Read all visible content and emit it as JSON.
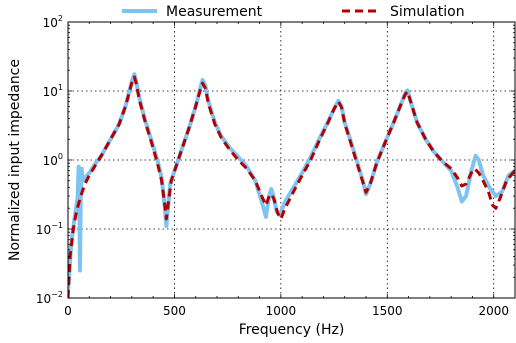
{
  "chart_data": {
    "type": "line",
    "xlabel": "Frequency (Hz)",
    "ylabel": "Normalized input impedance",
    "xlim": [
      0,
      2100
    ],
    "ylim": [
      0.01,
      100
    ],
    "yscale": "log",
    "grid": true,
    "legend_position": "top",
    "x_ticks": [
      0,
      500,
      1000,
      1500,
      2000
    ],
    "x_tick_labels": [
      "0",
      "500",
      "1000",
      "1500",
      "2000"
    ],
    "y_ticks": [
      {
        "value": 0.01,
        "base": "10",
        "exp": "−2"
      },
      {
        "value": 0.1,
        "base": "10",
        "exp": "−1"
      },
      {
        "value": 1,
        "base": "10",
        "exp": "0"
      },
      {
        "value": 10,
        "base": "10",
        "exp": "1"
      },
      {
        "value": 100,
        "base": "10",
        "exp": "2"
      }
    ],
    "series": [
      {
        "name": "Measurement",
        "color": "#7ec4f2",
        "style": "solid",
        "points": [
          [
            0,
            0.012
          ],
          [
            15,
            0.06
          ],
          [
            30,
            0.14
          ],
          [
            45,
            0.28
          ],
          [
            50,
            0.8
          ],
          [
            53,
            0.35
          ],
          [
            56,
            0.025
          ],
          [
            60,
            0.3
          ],
          [
            64,
            0.75
          ],
          [
            70,
            0.5
          ],
          [
            80,
            0.55
          ],
          [
            100,
            0.65
          ],
          [
            130,
            0.9
          ],
          [
            160,
            1.2
          ],
          [
            200,
            2.0
          ],
          [
            240,
            3.3
          ],
          [
            270,
            6.0
          ],
          [
            290,
            10.5
          ],
          [
            305,
            15.5
          ],
          [
            312,
            17.5
          ],
          [
            320,
            14
          ],
          [
            335,
            8.0
          ],
          [
            360,
            4.0
          ],
          [
            390,
            2.0
          ],
          [
            420,
            1.0
          ],
          [
            440,
            0.55
          ],
          [
            455,
            0.2
          ],
          [
            462,
            0.11
          ],
          [
            468,
            0.18
          ],
          [
            480,
            0.45
          ],
          [
            510,
            0.85
          ],
          [
            540,
            1.6
          ],
          [
            570,
            3.0
          ],
          [
            600,
            6.0
          ],
          [
            620,
            10.5
          ],
          [
            632,
            14.5
          ],
          [
            645,
            12
          ],
          [
            660,
            7.0
          ],
          [
            690,
            3.5
          ],
          [
            720,
            2.2
          ],
          [
            760,
            1.5
          ],
          [
            800,
            1.1
          ],
          [
            840,
            0.8
          ],
          [
            880,
            0.5
          ],
          [
            910,
            0.25
          ],
          [
            930,
            0.15
          ],
          [
            945,
            0.3
          ],
          [
            955,
            0.38
          ],
          [
            965,
            0.3
          ],
          [
            980,
            0.18
          ],
          [
            995,
            0.16
          ],
          [
            1020,
            0.25
          ],
          [
            1060,
            0.4
          ],
          [
            1100,
            0.65
          ],
          [
            1140,
            1.1
          ],
          [
            1180,
            2.0
          ],
          [
            1220,
            3.5
          ],
          [
            1250,
            5.5
          ],
          [
            1270,
            7.2
          ],
          [
            1285,
            6.0
          ],
          [
            1300,
            3.5
          ],
          [
            1330,
            1.8
          ],
          [
            1360,
            0.9
          ],
          [
            1385,
            0.5
          ],
          [
            1400,
            0.32
          ],
          [
            1420,
            0.45
          ],
          [
            1450,
            0.9
          ],
          [
            1490,
            1.8
          ],
          [
            1530,
            3.5
          ],
          [
            1565,
            6.5
          ],
          [
            1585,
            9.5
          ],
          [
            1595,
            10.2
          ],
          [
            1610,
            7.0
          ],
          [
            1640,
            3.5
          ],
          [
            1680,
            2.0
          ],
          [
            1720,
            1.3
          ],
          [
            1760,
            0.95
          ],
          [
            1800,
            0.7
          ],
          [
            1830,
            0.4
          ],
          [
            1850,
            0.25
          ],
          [
            1870,
            0.3
          ],
          [
            1895,
            0.7
          ],
          [
            1915,
            1.15
          ],
          [
            1930,
            1.0
          ],
          [
            1950,
            0.6
          ],
          [
            1980,
            0.4
          ],
          [
            2010,
            0.3
          ],
          [
            2040,
            0.35
          ],
          [
            2070,
            0.6
          ],
          [
            2100,
            0.7
          ]
        ]
      },
      {
        "name": "Simulation",
        "color": "#b20000",
        "style": "dashed",
        "points": [
          [
            0,
            0.01
          ],
          [
            10,
            0.04
          ],
          [
            25,
            0.1
          ],
          [
            40,
            0.18
          ],
          [
            60,
            0.3
          ],
          [
            80,
            0.45
          ],
          [
            100,
            0.6
          ],
          [
            130,
            0.85
          ],
          [
            160,
            1.2
          ],
          [
            200,
            2.0
          ],
          [
            240,
            3.3
          ],
          [
            270,
            6.0
          ],
          [
            290,
            10.0
          ],
          [
            303,
            14.5
          ],
          [
            312,
            16.0
          ],
          [
            320,
            13
          ],
          [
            335,
            7.5
          ],
          [
            360,
            3.8
          ],
          [
            390,
            1.9
          ],
          [
            420,
            0.9
          ],
          [
            440,
            0.5
          ],
          [
            455,
            0.22
          ],
          [
            462,
            0.14
          ],
          [
            470,
            0.22
          ],
          [
            485,
            0.5
          ],
          [
            510,
            0.85
          ],
          [
            540,
            1.6
          ],
          [
            570,
            3.0
          ],
          [
            600,
            6.0
          ],
          [
            620,
            10.0
          ],
          [
            632,
            13.0
          ],
          [
            645,
            11
          ],
          [
            660,
            6.5
          ],
          [
            690,
            3.3
          ],
          [
            720,
            2.1
          ],
          [
            760,
            1.4
          ],
          [
            800,
            1.0
          ],
          [
            840,
            0.75
          ],
          [
            880,
            0.5
          ],
          [
            910,
            0.3
          ],
          [
            930,
            0.22
          ],
          [
            945,
            0.3
          ],
          [
            955,
            0.32
          ],
          [
            968,
            0.27
          ],
          [
            985,
            0.17
          ],
          [
            1000,
            0.14
          ],
          [
            1020,
            0.2
          ],
          [
            1060,
            0.35
          ],
          [
            1100,
            0.6
          ],
          [
            1140,
            1.0
          ],
          [
            1180,
            1.9
          ],
          [
            1220,
            3.4
          ],
          [
            1250,
            5.5
          ],
          [
            1270,
            7.0
          ],
          [
            1285,
            5.8
          ],
          [
            1300,
            3.4
          ],
          [
            1330,
            1.7
          ],
          [
            1360,
            0.85
          ],
          [
            1385,
            0.48
          ],
          [
            1400,
            0.34
          ],
          [
            1420,
            0.45
          ],
          [
            1450,
            0.9
          ],
          [
            1490,
            1.8
          ],
          [
            1530,
            3.5
          ],
          [
            1565,
            6.5
          ],
          [
            1585,
            9.0
          ],
          [
            1595,
            9.8
          ],
          [
            1610,
            7.0
          ],
          [
            1640,
            3.5
          ],
          [
            1680,
            2.0
          ],
          [
            1720,
            1.3
          ],
          [
            1760,
            0.95
          ],
          [
            1800,
            0.75
          ],
          [
            1830,
            0.55
          ],
          [
            1850,
            0.42
          ],
          [
            1870,
            0.45
          ],
          [
            1895,
            0.65
          ],
          [
            1910,
            0.75
          ],
          [
            1930,
            0.65
          ],
          [
            1950,
            0.5
          ],
          [
            1975,
            0.35
          ],
          [
            1995,
            0.22
          ],
          [
            2010,
            0.2
          ],
          [
            2030,
            0.28
          ],
          [
            2060,
            0.5
          ],
          [
            2090,
            0.65
          ],
          [
            2100,
            0.7
          ]
        ]
      }
    ]
  }
}
